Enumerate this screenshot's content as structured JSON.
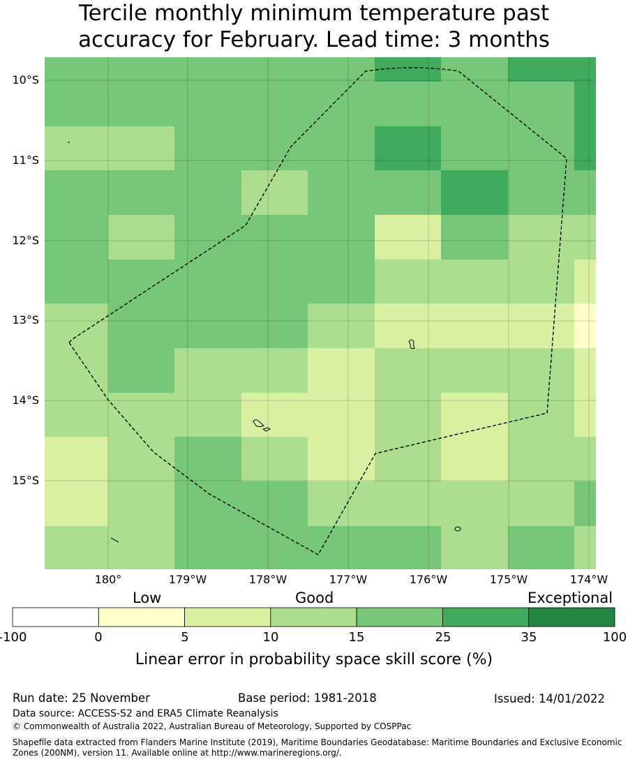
{
  "title": {
    "line1": "Tercile monthly minimum temperature past",
    "line2": "accuracy for February. Lead time: 3 months"
  },
  "map": {
    "lat_labels": [
      "10°S",
      "11°S",
      "12°S",
      "13°S",
      "14°S",
      "15°S"
    ],
    "lon_labels": [
      "180°",
      "179°W",
      "178°W",
      "177°W",
      "176°W",
      "175°W",
      "174°W"
    ],
    "region_boundary": "dashed",
    "skill_grid_percent_band": [
      [
        "15-25",
        "15-25",
        "15-25",
        "15-25",
        "15-25",
        "25-35",
        "15-25",
        "25-35",
        "25-35"
      ],
      [
        "15-25",
        "15-25",
        "15-25",
        "15-25",
        "15-25",
        "15-25",
        "15-25",
        "15-25",
        "25-35"
      ],
      [
        "10-15",
        "10-15",
        "15-25",
        "15-25",
        "15-25",
        "25-35",
        "15-25",
        "15-25",
        "25-35"
      ],
      [
        "15-25",
        "15-25",
        "15-25",
        "10-15",
        "15-25",
        "15-25",
        "25-35",
        "15-25",
        "15-25"
      ],
      [
        "15-25",
        "10-15",
        "15-25",
        "15-25",
        "15-25",
        "5-10",
        "15-25",
        "10-15",
        "10-15"
      ],
      [
        "15-25",
        "15-25",
        "15-25",
        "15-25",
        "15-25",
        "10-15",
        "10-15",
        "10-15",
        "5-10"
      ],
      [
        "10-15",
        "15-25",
        "15-25",
        "15-25",
        "10-15",
        "5-10",
        "5-10",
        "5-10",
        "0-5"
      ],
      [
        "10-15",
        "15-25",
        "10-15",
        "10-15",
        "5-10",
        "10-15",
        "10-15",
        "10-15",
        "5-10"
      ],
      [
        "10-15",
        "10-15",
        "10-15",
        "5-10",
        "5-10",
        "10-15",
        "5-10",
        "10-15",
        "5-10"
      ],
      [
        "5-10",
        "10-15",
        "15-25",
        "10-15",
        "5-10",
        "10-15",
        "5-10",
        "10-15",
        "10-15"
      ],
      [
        "5-10",
        "10-15",
        "15-25",
        "15-25",
        "10-15",
        "10-15",
        "10-15",
        "10-15",
        "15-25"
      ],
      [
        "10-15",
        "10-15",
        "15-25",
        "15-25",
        "15-25",
        "15-25",
        "10-15",
        "15-25",
        "10-15"
      ]
    ]
  },
  "colorbar": {
    "categories": [
      "Low",
      "Good",
      "Exceptional"
    ],
    "ticks": [
      "-100",
      "0",
      "5",
      "10",
      "15",
      "25",
      "35",
      "100"
    ],
    "colors": [
      "#ffffff",
      "#ffffcc",
      "#d9f0a3",
      "#addd8e",
      "#78c679",
      "#41ab5d",
      "#238443"
    ],
    "label": "Linear error in probability space skill score (%)"
  },
  "footer": {
    "run_date": "Run date: 25 November",
    "base_period": "Base period: 1981-2018",
    "issued": "Issued: 14/01/2022",
    "data_source": "Data source: ACCESS-S2 and ERA5 Climate Reanalysis",
    "copyright": "© Commonwealth of Australia 2022, Australian Bureau of Meteorology, Supported by COSPPac",
    "shapefile_line1": "Shapefile data extracted from Flanders Marine Institute (2019), Maritime Boundaries Geodatabase: Maritime Boundaries and Exclusive Economic",
    "shapefile_line2": "Zones (200NM), version 11. Available online at http://www.marineregions.org/."
  }
}
